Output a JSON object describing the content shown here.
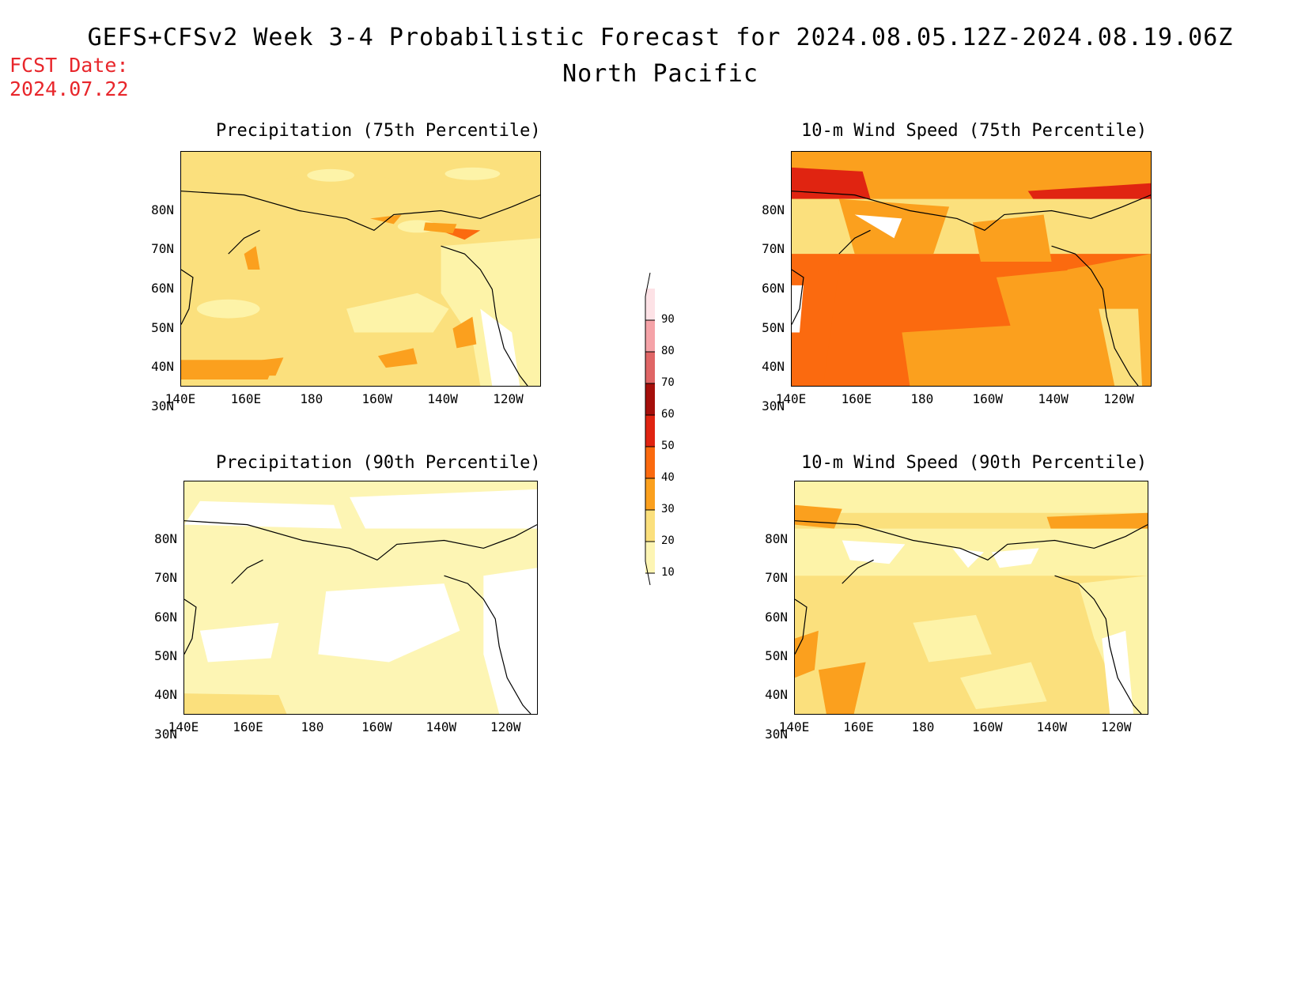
{
  "header": {
    "title": "GEFS+CFSv2 Week 3-4 Probabilistic Forecast for 2024.08.05.12Z-2024.08.19.06Z",
    "region": "North Pacific",
    "fcst_label": "FCST Date:",
    "fcst_date": "2024.07.22"
  },
  "axes": {
    "x_ticks": [
      "140E",
      "160E",
      "180",
      "160W",
      "140W",
      "120W"
    ],
    "y_ticks": [
      "80N",
      "70N",
      "60N",
      "50N",
      "40N",
      "30N"
    ]
  },
  "panels": [
    {
      "title": "Precipitation (75th Percentile)",
      "dominant_category": "20-30",
      "colors": [
        "#fbe07d",
        "#fdf3a8",
        "#fba01e",
        "#fb6a0f"
      ]
    },
    {
      "title": "10-m Wind Speed (75th Percentile)",
      "dominant_category": "40-50",
      "colors": [
        "#fb6a0f",
        "#fba01e",
        "#fbe07d",
        "#e02411"
      ]
    },
    {
      "title": "Precipitation (90th Percentile)",
      "dominant_category": "10-20",
      "colors": [
        "#fdf5b4",
        "#ffffff",
        "#fbe07d"
      ]
    },
    {
      "title": "10-m Wind Speed (90th Percentile)",
      "dominant_category": "20-30",
      "colors": [
        "#fbe07d",
        "#fdf3a8",
        "#ffffff",
        "#fba01e"
      ]
    }
  ],
  "colorbar": {
    "labels": [
      "10",
      "20",
      "30",
      "40",
      "50",
      "60",
      "70",
      "80",
      "90"
    ],
    "colors": [
      "#fdf5b4",
      "#fbe07d",
      "#fba01e",
      "#fb6a0f",
      "#e02411",
      "#a50f0b",
      "#e06666",
      "#f5a3a8",
      "#fde2e6"
    ]
  }
}
